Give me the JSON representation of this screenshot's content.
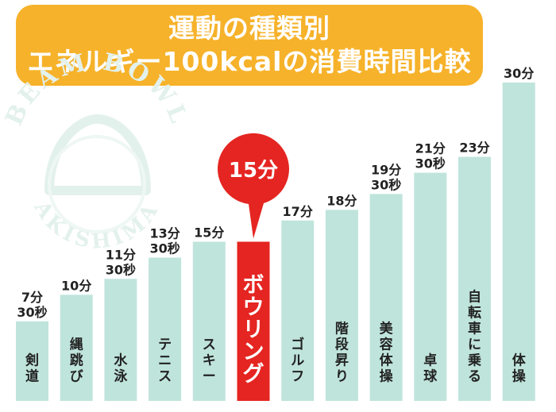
{
  "title": {
    "line1": "運動の種類別",
    "line2": "エネルギー100kcalの消費時間比較"
  },
  "watermark": {
    "top": "BEAM BOWL",
    "bottom": "AKISHIMA"
  },
  "highlight": {
    "callout": "15分",
    "color": "#e52521"
  },
  "colors": {
    "bar": "#bfe4dc",
    "highlight": "#e52521",
    "title_bg": "#f6b22a",
    "watermark": "#e3f1ed"
  },
  "chart_data": {
    "type": "bar",
    "unit": "minutes",
    "ylim": [
      0,
      30
    ],
    "grid": false,
    "categories": [
      "剣道",
      "縄跳び",
      "水泳",
      "テニス",
      "スキー",
      "ボウリング",
      "ゴルフ",
      "階段昇り",
      "美容体操",
      "卓球",
      "自転車に乗る",
      "体操"
    ],
    "values": [
      7.5,
      10,
      11.5,
      13.5,
      15,
      15,
      17,
      18,
      19.5,
      21.5,
      23,
      30
    ],
    "value_labels": [
      "7分\n30秒",
      "10分",
      "11分\n30秒",
      "13分\n30秒",
      "15分",
      "",
      "17分",
      "18分",
      "19分\n30秒",
      "21分\n30秒",
      "23分",
      "30分"
    ],
    "highlight_index": 5
  }
}
